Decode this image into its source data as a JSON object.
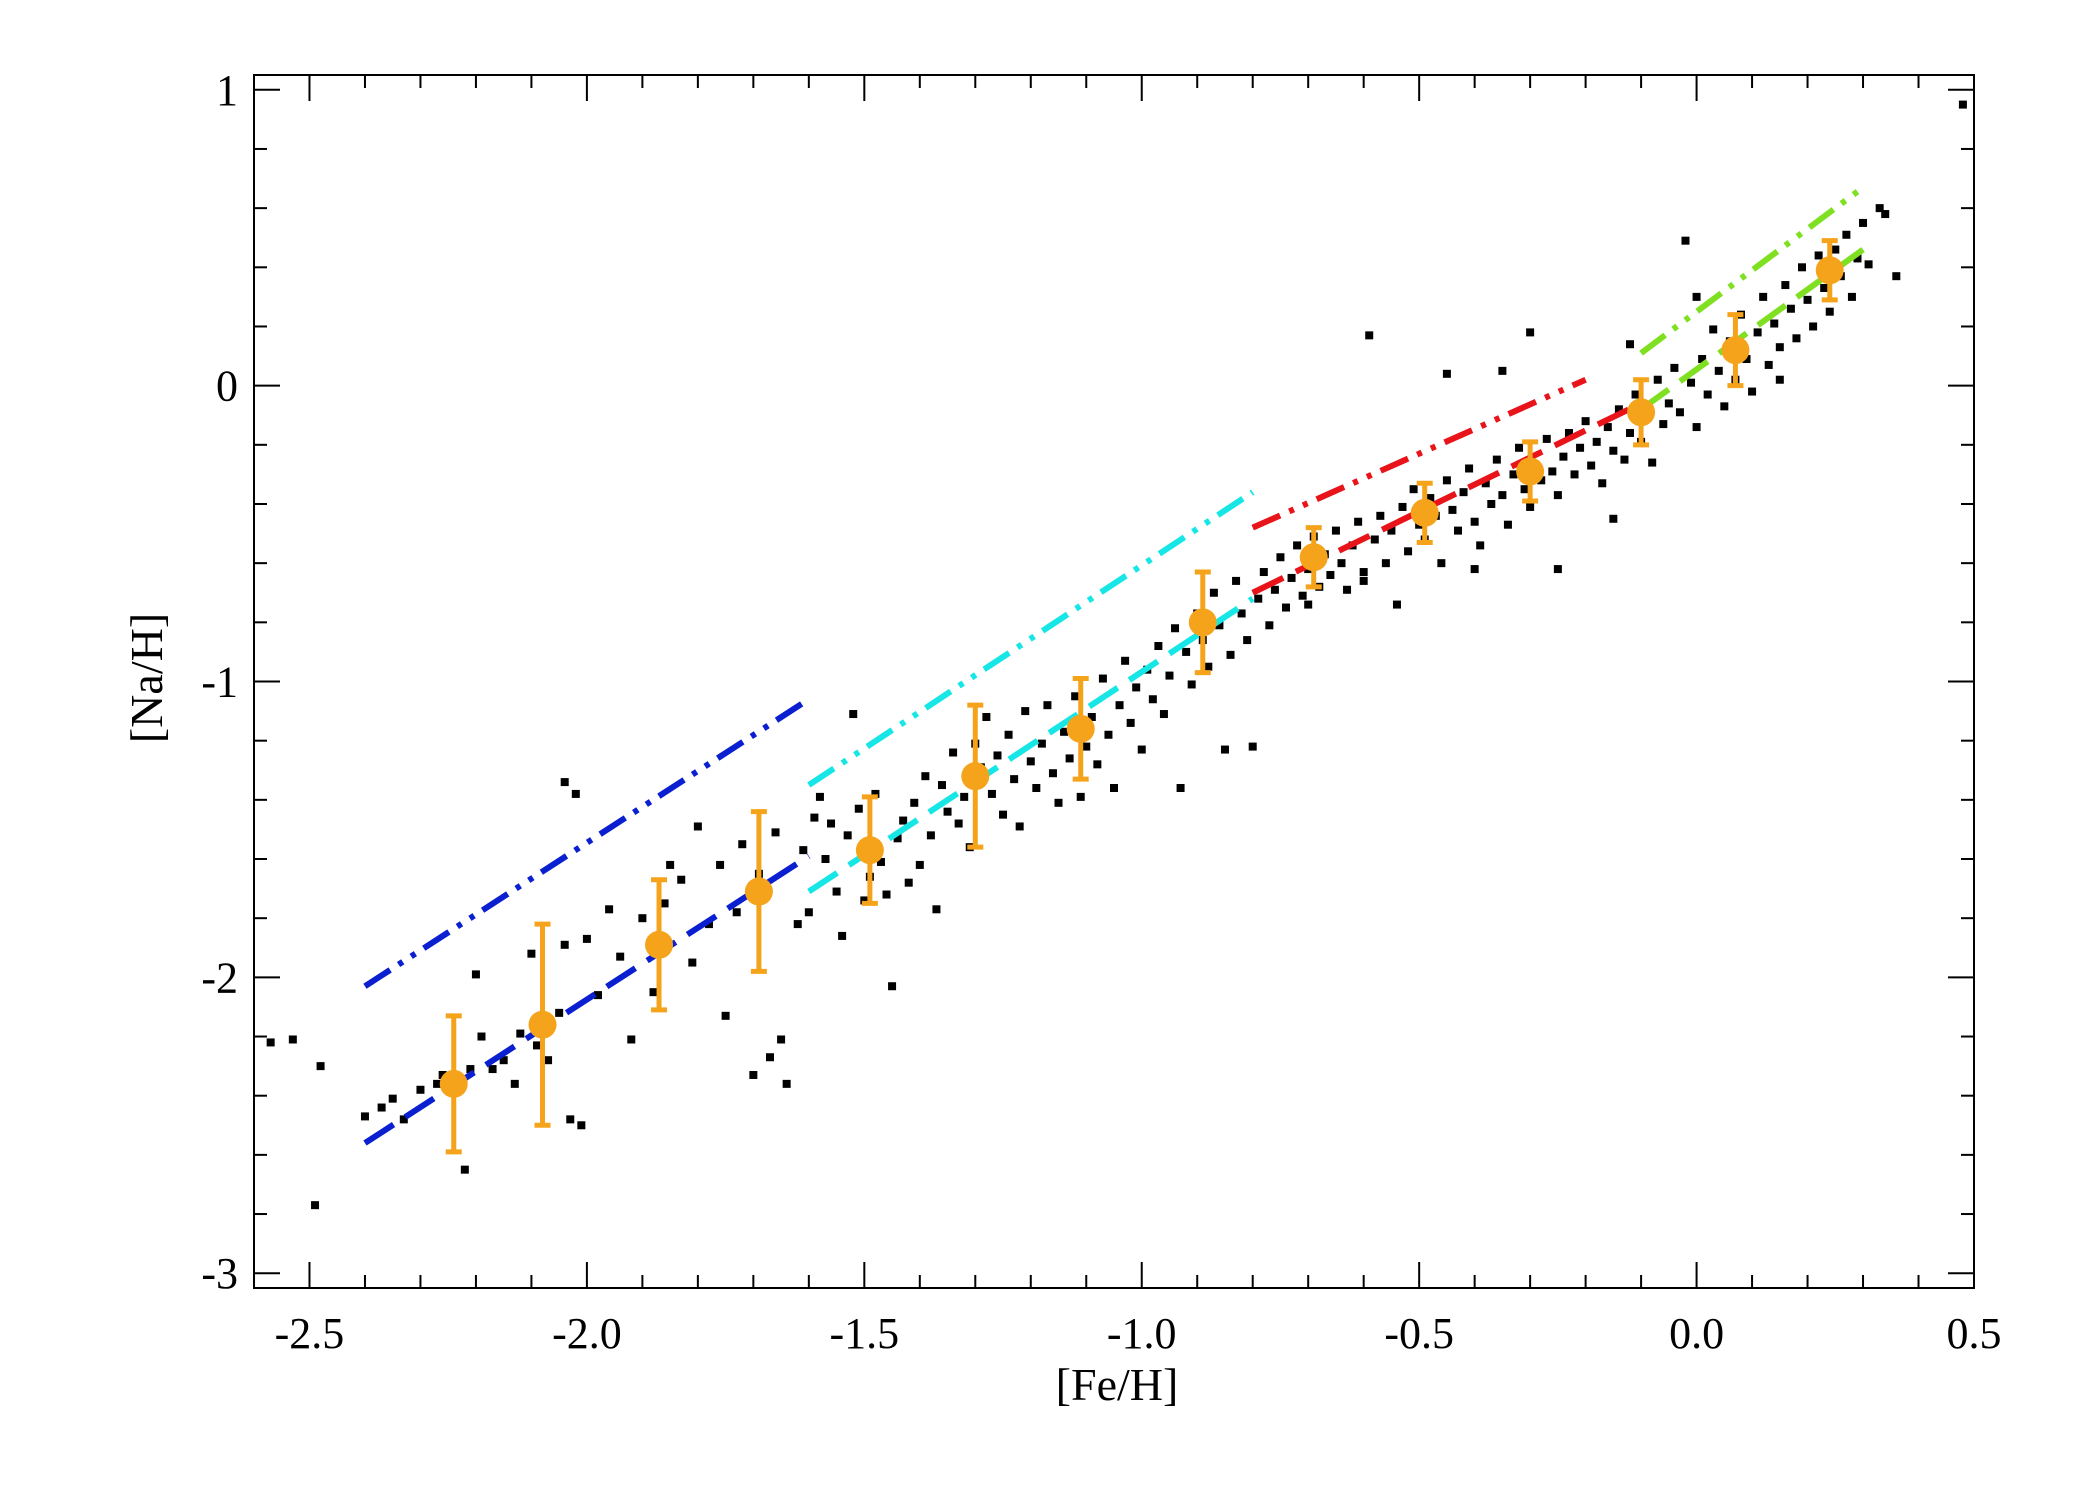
{
  "chart_data": {
    "type": "scatter",
    "title": "",
    "xlabel": "[Fe/H]",
    "ylabel": "[Na/H]",
    "xlim": [
      -2.6,
      0.5
    ],
    "ylim": [
      -3.05,
      1.05
    ],
    "xticks": [
      -2.5,
      -2.0,
      -1.5,
      -1.0,
      -0.5,
      0.0,
      0.5
    ],
    "xtick_labels": [
      "-2.5",
      "-2.0",
      "-1.5",
      "-1.0",
      "-0.5",
      "0.0",
      "0.5"
    ],
    "yticks": [
      -3,
      -2,
      -1,
      0,
      1
    ],
    "ytick_labels": [
      "-3",
      "-2",
      "-1",
      "0",
      "1"
    ],
    "grid": false,
    "legend": "none",
    "colors": {
      "scatter": "#000000",
      "binned": "#f5a31a",
      "blue": "#0a1fd0",
      "cyan": "#17e6e6",
      "red": "#e8141a",
      "green": "#7fe021"
    },
    "binned_means": [
      {
        "x": -2.24,
        "y": -2.36,
        "yerr": 0.23
      },
      {
        "x": -2.08,
        "y": -2.16,
        "yerr": 0.34
      },
      {
        "x": -1.87,
        "y": -1.89,
        "yerr": 0.22
      },
      {
        "x": -1.69,
        "y": -1.71,
        "yerr": 0.27
      },
      {
        "x": -1.49,
        "y": -1.57,
        "yerr": 0.18
      },
      {
        "x": -1.3,
        "y": -1.32,
        "yerr": 0.24
      },
      {
        "x": -1.11,
        "y": -1.16,
        "yerr": 0.17
      },
      {
        "x": -0.89,
        "y": -0.8,
        "yerr": 0.17
      },
      {
        "x": -0.69,
        "y": -0.58,
        "yerr": 0.1
      },
      {
        "x": -0.49,
        "y": -0.43,
        "yerr": 0.1
      },
      {
        "x": -0.3,
        "y": -0.29,
        "yerr": 0.1
      },
      {
        "x": -0.1,
        "y": -0.09,
        "yerr": 0.11
      },
      {
        "x": 0.07,
        "y": 0.12,
        "yerr": 0.12
      },
      {
        "x": 0.24,
        "y": 0.39,
        "yerr": 0.1
      }
    ],
    "fit_lines": [
      {
        "style": "dash",
        "color": "blue",
        "x": [
          -2.4,
          -1.6
        ],
        "y": [
          -2.56,
          -1.59
        ]
      },
      {
        "style": "dash-dot-dot",
        "color": "blue",
        "x": [
          -2.4,
          -1.6
        ],
        "y": [
          -2.03,
          -1.06
        ]
      },
      {
        "style": "dash",
        "color": "cyan",
        "x": [
          -1.6,
          -0.8
        ],
        "y": [
          -1.71,
          -0.72
        ]
      },
      {
        "style": "dash-dot-dot",
        "color": "cyan",
        "x": [
          -1.6,
          -0.8
        ],
        "y": [
          -1.35,
          -0.36
        ]
      },
      {
        "style": "dash",
        "color": "red",
        "x": [
          -0.8,
          -0.1
        ],
        "y": [
          -0.7,
          -0.06
        ]
      },
      {
        "style": "dash-dot-dot",
        "color": "red",
        "x": [
          -0.8,
          -0.2
        ],
        "y": [
          -0.48,
          0.02
        ]
      },
      {
        "style": "dash",
        "color": "green",
        "x": [
          -0.1,
          0.3
        ],
        "y": [
          -0.08,
          0.46
        ]
      },
      {
        "style": "dash-dot-dot",
        "color": "green",
        "x": [
          -0.1,
          0.3
        ],
        "y": [
          0.11,
          0.67
        ]
      }
    ],
    "scatter_points": [
      [
        -2.57,
        -2.22
      ],
      [
        -2.53,
        -2.21
      ],
      [
        -2.48,
        -2.3
      ],
      [
        -2.49,
        -2.77
      ],
      [
        -2.4,
        -2.47
      ],
      [
        -2.37,
        -2.44
      ],
      [
        -2.35,
        -2.41
      ],
      [
        -2.33,
        -2.48
      ],
      [
        -2.3,
        -2.38
      ],
      [
        -2.27,
        -2.36
      ],
      [
        -2.26,
        -2.33
      ],
      [
        -2.22,
        -2.65
      ],
      [
        -2.21,
        -2.31
      ],
      [
        -2.2,
        -1.99
      ],
      [
        -2.19,
        -2.2
      ],
      [
        -2.17,
        -2.31
      ],
      [
        -2.15,
        -2.28
      ],
      [
        -2.13,
        -2.36
      ],
      [
        -2.12,
        -2.19
      ],
      [
        -2.1,
        -1.92
      ],
      [
        -2.09,
        -2.23
      ],
      [
        -2.07,
        -2.28
      ],
      [
        -2.05,
        -2.12
      ],
      [
        -2.04,
        -1.89
      ],
      [
        -2.03,
        -2.48
      ],
      [
        -2.01,
        -2.5
      ],
      [
        -2.0,
        -1.87
      ],
      [
        -2.04,
        -1.34
      ],
      [
        -2.02,
        -1.38
      ],
      [
        -1.98,
        -2.06
      ],
      [
        -1.96,
        -1.77
      ],
      [
        -1.94,
        -1.93
      ],
      [
        -1.92,
        -2.21
      ],
      [
        -1.9,
        -1.8
      ],
      [
        -1.88,
        -2.05
      ],
      [
        -1.86,
        -1.75
      ],
      [
        -1.85,
        -1.62
      ],
      [
        -1.83,
        -1.67
      ],
      [
        -1.81,
        -1.95
      ],
      [
        -1.8,
        -1.49
      ],
      [
        -1.78,
        -1.82
      ],
      [
        -1.76,
        -1.62
      ],
      [
        -1.75,
        -2.13
      ],
      [
        -1.73,
        -1.78
      ],
      [
        -1.72,
        -1.55
      ],
      [
        -1.7,
        -2.33
      ],
      [
        -1.69,
        -1.65
      ],
      [
        -1.67,
        -2.27
      ],
      [
        -1.66,
        -1.51
      ],
      [
        -1.65,
        -2.21
      ],
      [
        -1.64,
        -2.36
      ],
      [
        -1.62,
        -1.82
      ],
      [
        -1.61,
        -1.57
      ],
      [
        -1.6,
        -1.78
      ],
      [
        -1.59,
        -1.46
      ],
      [
        -1.58,
        -1.39
      ],
      [
        -1.57,
        -1.6
      ],
      [
        -1.56,
        -1.48
      ],
      [
        -1.55,
        -1.71
      ],
      [
        -1.54,
        -1.86
      ],
      [
        -1.53,
        -1.52
      ],
      [
        -1.52,
        -1.11
      ],
      [
        -1.51,
        -1.43
      ],
      [
        -1.5,
        -1.74
      ],
      [
        -1.49,
        -1.66
      ],
      [
        -1.48,
        -1.38
      ],
      [
        -1.47,
        -1.61
      ],
      [
        -1.46,
        -1.72
      ],
      [
        -1.45,
        -2.03
      ],
      [
        -1.44,
        -1.53
      ],
      [
        -1.43,
        -1.47
      ],
      [
        -1.42,
        -1.68
      ],
      [
        -1.41,
        -1.41
      ],
      [
        -1.4,
        -1.62
      ],
      [
        -1.39,
        -1.32
      ],
      [
        -1.38,
        -1.52
      ],
      [
        -1.37,
        -1.77
      ],
      [
        -1.36,
        -1.35
      ],
      [
        -1.35,
        -1.44
      ],
      [
        -1.34,
        -1.24
      ],
      [
        -1.33,
        -1.48
      ],
      [
        -1.32,
        -1.39
      ],
      [
        -1.31,
        -1.56
      ],
      [
        -1.3,
        -1.21
      ],
      [
        -1.29,
        -1.29
      ],
      [
        -1.28,
        -1.12
      ],
      [
        -1.27,
        -1.38
      ],
      [
        -1.26,
        -1.25
      ],
      [
        -1.25,
        -1.45
      ],
      [
        -1.24,
        -1.18
      ],
      [
        -1.23,
        -1.33
      ],
      [
        -1.22,
        -1.49
      ],
      [
        -1.21,
        -1.1
      ],
      [
        -1.2,
        -1.27
      ],
      [
        -1.19,
        -1.36
      ],
      [
        -1.18,
        -1.21
      ],
      [
        -1.17,
        -1.08
      ],
      [
        -1.16,
        -1.31
      ],
      [
        -1.15,
        -1.41
      ],
      [
        -1.14,
        -1.17
      ],
      [
        -1.13,
        -1.26
      ],
      [
        -1.12,
        -1.05
      ],
      [
        -1.11,
        -1.39
      ],
      [
        -1.1,
        -1.22
      ],
      [
        -1.09,
        -1.12
      ],
      [
        -1.08,
        -1.28
      ],
      [
        -1.07,
        -0.99
      ],
      [
        -1.06,
        -1.18
      ],
      [
        -1.05,
        -1.36
      ],
      [
        -1.04,
        -1.08
      ],
      [
        -1.03,
        -0.93
      ],
      [
        -1.02,
        -1.14
      ],
      [
        -1.01,
        -1.02
      ],
      [
        -1.0,
        -1.23
      ],
      [
        -0.99,
        -0.96
      ],
      [
        -0.98,
        -1.06
      ],
      [
        -0.97,
        -0.88
      ],
      [
        -0.96,
        -1.11
      ],
      [
        -0.95,
        -0.98
      ],
      [
        -0.94,
        -0.82
      ],
      [
        -0.93,
        -1.36
      ],
      [
        -0.92,
        -0.9
      ],
      [
        -0.91,
        -1.01
      ],
      [
        -0.9,
        -0.77
      ],
      [
        -0.89,
        -0.86
      ],
      [
        -0.88,
        -0.95
      ],
      [
        -0.87,
        -0.7
      ],
      [
        -0.86,
        -0.81
      ],
      [
        -0.85,
        -1.23
      ],
      [
        -0.84,
        -0.91
      ],
      [
        -0.83,
        -0.66
      ],
      [
        -0.82,
        -0.77
      ],
      [
        -0.81,
        -0.86
      ],
      [
        -0.8,
        -1.22
      ],
      [
        -0.79,
        -0.72
      ],
      [
        -0.78,
        -0.63
      ],
      [
        -0.77,
        -0.81
      ],
      [
        -0.76,
        -0.69
      ],
      [
        -0.75,
        -0.58
      ],
      [
        -0.74,
        -0.75
      ],
      [
        -0.73,
        -0.65
      ],
      [
        -0.72,
        -0.54
      ],
      [
        -0.71,
        -0.71
      ],
      [
        -0.7,
        -0.62
      ],
      [
        -0.69,
        -0.51
      ],
      [
        -0.68,
        -0.68
      ],
      [
        -0.67,
        -0.57
      ],
      [
        -0.66,
        -0.64
      ],
      [
        -0.65,
        -0.49
      ],
      [
        -0.64,
        -0.6
      ],
      [
        -0.63,
        -0.69
      ],
      [
        -0.62,
        -0.54
      ],
      [
        -0.61,
        -0.46
      ],
      [
        -0.6,
        -0.63
      ],
      [
        -0.59,
        0.17
      ],
      [
        -0.58,
        -0.52
      ],
      [
        -0.57,
        -0.44
      ],
      [
        -0.56,
        -0.6
      ],
      [
        -0.55,
        -0.49
      ],
      [
        -0.54,
        -0.74
      ],
      [
        -0.53,
        -0.41
      ],
      [
        -0.52,
        -0.56
      ],
      [
        -0.51,
        -0.35
      ],
      [
        -0.5,
        -0.47
      ],
      [
        -0.49,
        -0.52
      ],
      [
        -0.48,
        -0.38
      ],
      [
        -0.47,
        -0.44
      ],
      [
        -0.46,
        -0.6
      ],
      [
        -0.45,
        -0.32
      ],
      [
        -0.44,
        -0.42
      ],
      [
        -0.43,
        -0.49
      ],
      [
        -0.42,
        -0.36
      ],
      [
        -0.41,
        -0.28
      ],
      [
        -0.4,
        -0.46
      ],
      [
        -0.39,
        -0.54
      ],
      [
        -0.38,
        -0.33
      ],
      [
        -0.37,
        -0.4
      ],
      [
        -0.36,
        -0.25
      ],
      [
        -0.35,
        -0.37
      ],
      [
        -0.34,
        -0.47
      ],
      [
        -0.33,
        -0.3
      ],
      [
        -0.32,
        -0.21
      ],
      [
        -0.31,
        -0.35
      ],
      [
        -0.3,
        -0.41
      ],
      [
        -0.29,
        -0.27
      ],
      [
        -0.28,
        -0.32
      ],
      [
        -0.27,
        -0.18
      ],
      [
        -0.26,
        -0.29
      ],
      [
        -0.25,
        -0.37
      ],
      [
        -0.24,
        -0.24
      ],
      [
        -0.23,
        -0.16
      ],
      [
        -0.22,
        -0.3
      ],
      [
        -0.21,
        -0.21
      ],
      [
        -0.2,
        -0.12
      ],
      [
        -0.19,
        -0.27
      ],
      [
        -0.18,
        -0.19
      ],
      [
        -0.17,
        -0.33
      ],
      [
        -0.16,
        -0.14
      ],
      [
        -0.15,
        -0.22
      ],
      [
        -0.14,
        -0.08
      ],
      [
        -0.13,
        -0.25
      ],
      [
        -0.12,
        -0.16
      ],
      [
        -0.11,
        -0.03
      ],
      [
        -0.1,
        -0.19
      ],
      [
        -0.09,
        -0.1
      ],
      [
        -0.08,
        -0.26
      ],
      [
        -0.07,
        0.02
      ],
      [
        -0.06,
        -0.13
      ],
      [
        -0.05,
        -0.06
      ],
      [
        -0.04,
        0.06
      ],
      [
        -0.03,
        -0.09
      ],
      [
        -0.02,
        0.49
      ],
      [
        -0.01,
        0.01
      ],
      [
        0.0,
        -0.14
      ],
      [
        0.01,
        0.09
      ],
      [
        0.02,
        -0.03
      ],
      [
        0.03,
        0.19
      ],
      [
        0.04,
        0.05
      ],
      [
        0.05,
        -0.07
      ],
      [
        0.06,
        0.15
      ],
      [
        0.07,
        0.02
      ],
      [
        0.08,
        0.24
      ],
      [
        0.09,
        0.09
      ],
      [
        0.1,
        -0.02
      ],
      [
        0.11,
        0.18
      ],
      [
        0.12,
        0.3
      ],
      [
        0.13,
        0.07
      ],
      [
        0.14,
        0.21
      ],
      [
        0.15,
        0.13
      ],
      [
        0.16,
        0.34
      ],
      [
        0.17,
        0.26
      ],
      [
        0.18,
        0.16
      ],
      [
        0.19,
        0.4
      ],
      [
        0.2,
        0.29
      ],
      [
        0.21,
        0.2
      ],
      [
        0.22,
        0.44
      ],
      [
        0.23,
        0.33
      ],
      [
        0.24,
        0.25
      ],
      [
        0.25,
        0.46
      ],
      [
        0.26,
        0.37
      ],
      [
        0.27,
        0.51
      ],
      [
        0.28,
        0.3
      ],
      [
        0.29,
        0.43
      ],
      [
        0.3,
        0.55
      ],
      [
        0.31,
        0.41
      ],
      [
        0.33,
        0.6
      ],
      [
        0.34,
        0.58
      ],
      [
        0.36,
        0.37
      ],
      [
        0.48,
        0.95
      ],
      [
        -0.3,
        0.18
      ],
      [
        -0.45,
        0.04
      ],
      [
        -0.25,
        -0.62
      ],
      [
        -0.12,
        0.14
      ],
      [
        -0.6,
        -0.66
      ],
      [
        -0.7,
        -0.74
      ],
      [
        -0.4,
        -0.62
      ],
      [
        -0.35,
        0.05
      ],
      [
        -0.15,
        -0.45
      ],
      [
        0.0,
        0.3
      ],
      [
        0.15,
        0.02
      ]
    ]
  }
}
